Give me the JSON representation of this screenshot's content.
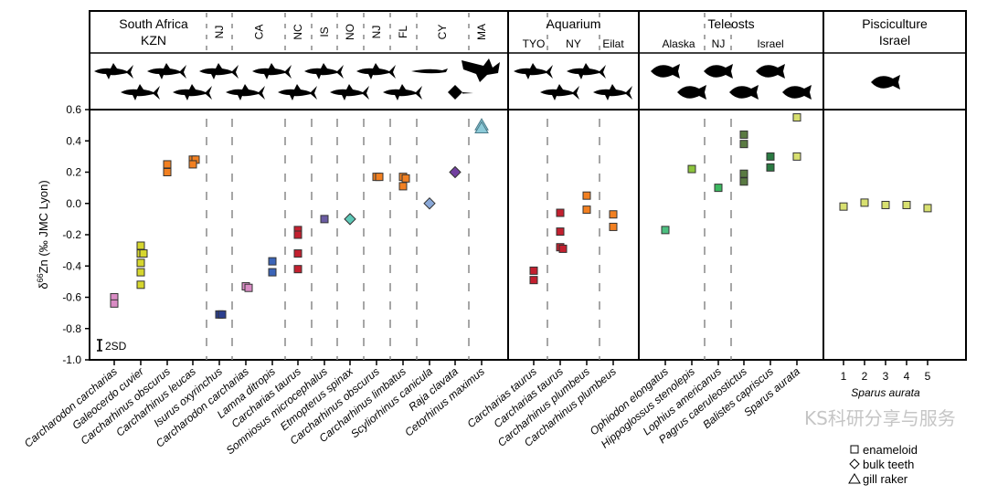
{
  "chart_data": {
    "type": "scatter",
    "ylabel_main": "δ",
    "ylabel_sup": "66",
    "ylabel_rest": "Zn (‰ JMC Lyon)",
    "ylim": [
      -1.0,
      0.6
    ],
    "yticks": [
      "0.6",
      "0.4",
      "0.2",
      "0.0",
      "-0.2",
      "-0.4",
      "-0.6",
      "-0.8",
      "-1.0"
    ],
    "ytick_values": [
      0.6,
      0.4,
      0.2,
      0.0,
      -0.2,
      -0.4,
      -0.6,
      -0.8,
      -1.0
    ],
    "grid": false,
    "error_bar_label": "2SD",
    "legend": {
      "placement": "bottom-right",
      "items": [
        {
          "marker": "square",
          "label": "enameloid"
        },
        {
          "marker": "diamond",
          "label": "bulk teeth"
        },
        {
          "marker": "triangle",
          "label": "gill raker"
        }
      ]
    },
    "panels": [
      {
        "title_lines": [
          "South Africa",
          "KZN"
        ],
        "subregions": [
          {
            "label": "NJ",
            "vertical": true,
            "cats": [
              4
            ]
          },
          {
            "label": "CA",
            "vertical": true,
            "cats": [
              5,
              6
            ]
          },
          {
            "label": "NC",
            "vertical": true,
            "cats": [
              7
            ]
          },
          {
            "label": "IS",
            "vertical": true,
            "cats": [
              8
            ]
          },
          {
            "label": "NO",
            "vertical": true,
            "cats": [
              9
            ]
          },
          {
            "label": "NJ",
            "vertical": true,
            "cats": [
              10
            ]
          },
          {
            "label": "FL",
            "vertical": true,
            "cats": [
              11
            ]
          },
          {
            "label": "CY",
            "vertical": true,
            "cats": [
              12,
              13
            ]
          },
          {
            "label": "MA",
            "vertical": true,
            "cats": [
              14
            ]
          }
        ],
        "title_cats": [
          0,
          1,
          2,
          3
        ],
        "categories": [
          {
            "label": "Carcharodon carcharias",
            "marker": "square",
            "color": "#d98cc4",
            "icon": "shark-icon",
            "values": [
              -0.6,
              -0.64
            ]
          },
          {
            "label": "Galeocerdo cuvier",
            "marker": "square",
            "color": "#d6d62e",
            "icon": "shark-icon",
            "values": [
              -0.27,
              -0.32,
              -0.32,
              -0.38,
              -0.44,
              -0.52
            ]
          },
          {
            "label": "Carcharhinus obscurus",
            "marker": "square",
            "color": "#f28021",
            "icon": "shark-icon",
            "values": [
              0.25,
              0.2
            ]
          },
          {
            "label": "Carcharhinus leucas",
            "marker": "square",
            "color": "#f28021",
            "icon": "shark-icon",
            "values": [
              0.28,
              0.28,
              0.25
            ]
          },
          {
            "label": "Isurus oxyrinchus",
            "marker": "square",
            "color": "#2b3f8f",
            "icon": "shark-icon",
            "values": [
              -0.71,
              -0.71
            ]
          },
          {
            "label": "Carcharodon carcharias",
            "marker": "square",
            "color": "#d98cc4",
            "icon": "shark-icon",
            "values": [
              -0.53,
              -0.54
            ]
          },
          {
            "label": "Lamna ditropis",
            "marker": "square",
            "color": "#3b64b8",
            "icon": "shark-icon",
            "values": [
              -0.37,
              -0.44
            ]
          },
          {
            "label": "Carcharias taurus",
            "marker": "square",
            "color": "#c3202f",
            "icon": "shark-icon",
            "values": [
              -0.17,
              -0.2,
              -0.32,
              -0.42
            ]
          },
          {
            "label": "Somniosus microcephalus",
            "marker": "square",
            "color": "#6b5ca3",
            "icon": "shark-icon",
            "values": [
              -0.1
            ]
          },
          {
            "label": "Etmopterus spinax",
            "marker": "diamond",
            "color": "#5ec9b8",
            "icon": "shark-icon",
            "values": [
              -0.1
            ]
          },
          {
            "label": "Carcharhinus obscurus",
            "marker": "square",
            "color": "#f28021",
            "icon": "shark-icon",
            "values": [
              0.17,
              0.17
            ]
          },
          {
            "label": "Carcharhinus limbatus",
            "marker": "square",
            "color": "#f28021",
            "icon": "shark-icon",
            "values": [
              0.17,
              0.16,
              0.11
            ]
          },
          {
            "label": "Scyliorhinus canicula",
            "marker": "diamond",
            "color": "#8aa8d8",
            "icon": "small-shark-icon",
            "values": [
              0.0
            ]
          },
          {
            "label": "Raja clavata",
            "marker": "diamond",
            "color": "#7240a0",
            "icon": "ray-icon",
            "values": [
              0.2
            ]
          },
          {
            "label": "Cetorhinus maximus",
            "marker": "triangle",
            "color": "#8ccad8",
            "icon": "basking-shark-icon",
            "values": [
              0.5,
              0.48
            ]
          }
        ]
      },
      {
        "title_lines": [
          "Aquarium"
        ],
        "subregions": [
          {
            "label": "TYO",
            "vertical": false,
            "cats": [
              0
            ]
          },
          {
            "label": "NY",
            "vertical": false,
            "cats": [
              1,
              2
            ]
          },
          {
            "label": "Eilat",
            "vertical": false,
            "cats": [
              3
            ]
          }
        ],
        "categories": [
          {
            "label": "Carcharias taurus",
            "marker": "square",
            "color": "#c3202f",
            "icon": "shark-icon",
            "values": [
              -0.43,
              -0.49
            ]
          },
          {
            "label": "Carcharias taurus",
            "marker": "square",
            "color": "#c3202f",
            "icon": "shark-icon",
            "values": [
              -0.06,
              -0.18,
              -0.28,
              -0.29
            ]
          },
          {
            "label": "Carcharhinus plumbeus",
            "marker": "square",
            "color": "#f28021",
            "icon": "shark-icon",
            "values": [
              0.05,
              -0.04
            ]
          },
          {
            "label": "Carcharhinus plumbeus",
            "marker": "square",
            "color": "#f28021",
            "icon": "shark-icon",
            "values": [
              -0.07,
              -0.15
            ]
          }
        ]
      },
      {
        "title_lines": [
          "Teleosts"
        ],
        "subregions": [
          {
            "label": "Alaska",
            "vertical": false,
            "cats": [
              0,
              1
            ]
          },
          {
            "label": "NJ",
            "vertical": false,
            "cats": [
              2
            ]
          },
          {
            "label": "Israel",
            "vertical": false,
            "cats": [
              3,
              4,
              5
            ]
          }
        ],
        "categories": [
          {
            "label": "Ophiodon elongatus",
            "marker": "square",
            "color": "#4cbf80",
            "icon": "fish-icon",
            "values": [
              -0.17
            ]
          },
          {
            "label": "Hippoglossus stenolepis",
            "marker": "square",
            "color": "#8cc43c",
            "icon": "fish-icon",
            "values": [
              0.22
            ]
          },
          {
            "label": "Lophius americanus",
            "marker": "square",
            "color": "#3cb860",
            "icon": "anglerfish-icon",
            "values": [
              0.1
            ]
          },
          {
            "label": "Pagrus caeruleostictus",
            "marker": "square",
            "color": "#5a7a42",
            "icon": "fish-icon",
            "values": [
              0.44,
              0.38,
              0.19,
              0.14
            ]
          },
          {
            "label": "Balistes capriscus",
            "marker": "square",
            "color": "#2a7a42",
            "icon": "fish-icon",
            "values": [
              0.3,
              0.23
            ]
          },
          {
            "label": "Sparus aurata",
            "marker": "square",
            "color": "#d8e070",
            "icon": "fish-icon",
            "values": [
              0.55,
              0.3
            ]
          }
        ]
      },
      {
        "title_lines": [
          "Pisciculture",
          "Israel"
        ],
        "subregions": [],
        "species_label": "Sparus aurata",
        "categories": [
          {
            "label": "1",
            "marker": "square",
            "color": "#d8e070",
            "values": [
              -0.02
            ]
          },
          {
            "label": "2",
            "marker": "square",
            "color": "#d8e070",
            "values": [
              0.005
            ]
          },
          {
            "label": "3",
            "marker": "square",
            "color": "#d8e070",
            "values": [
              -0.01
            ]
          },
          {
            "label": "4",
            "marker": "square",
            "color": "#d8e070",
            "values": [
              -0.01
            ]
          },
          {
            "label": "5",
            "marker": "square",
            "color": "#d8e070",
            "values": [
              -0.03
            ]
          }
        ]
      }
    ]
  },
  "watermark": "KS科研分享与服务"
}
